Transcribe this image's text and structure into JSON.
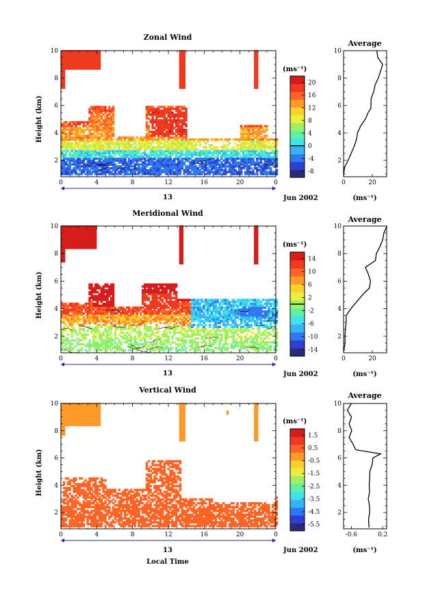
{
  "colors": {
    "colormap": [
      "#2a2a7a",
      "#2f3fd0",
      "#2f78f0",
      "#36b4f4",
      "#3fe3e8",
      "#5ff0a8",
      "#9ff060",
      "#e8ef3c",
      "#ffd02c",
      "#ff9a28",
      "#ff6424",
      "#f03a20",
      "#d81c1c"
    ],
    "contour": "#000000",
    "axis": "#000000",
    "timebar": "#1b2a9a"
  },
  "date_label": "Jun 2002",
  "day_label": "13",
  "x_axis_title": "Local Time",
  "y_axis_title": "Height (km)",
  "unit_label": "(ms⁻¹)",
  "avg_unit_label": "(ms⁻¹)",
  "chart_data": [
    {
      "type": "heatmap",
      "title": "Zonal Wind",
      "xlabel": "",
      "ylabel": "Height (km)",
      "x_ticks": [
        "0",
        "4",
        "8",
        "12",
        "16",
        "20",
        "0"
      ],
      "xlim": [
        0,
        24
      ],
      "y_ticks": [
        "2",
        "4",
        "6",
        "8",
        "10"
      ],
      "ylim": [
        0.8,
        10
      ],
      "colorbar": {
        "label": "(ms⁻¹)",
        "ticks": [
          "-8",
          "-4",
          "0",
          "4",
          "8",
          "12",
          "16",
          "20"
        ],
        "range": [
          -10,
          22
        ],
        "contour_at": 0
      },
      "average": {
        "title": "Average",
        "xlabel": "(ms⁻¹)",
        "x_ticks": [
          "0",
          "20"
        ],
        "xlim": [
          0,
          30
        ],
        "y_ticks": [
          "2",
          "4",
          "6",
          "8",
          "10"
        ],
        "height_km": [
          0.9,
          1.5,
          2.0,
          2.5,
          3.0,
          3.5,
          4.0,
          4.5,
          5.0,
          5.5,
          5.8,
          6.5,
          7.0,
          7.5,
          8.0,
          8.5,
          9.0,
          9.5,
          10.0
        ],
        "wind_ms": [
          0,
          1,
          3,
          5,
          7,
          9,
          10,
          12,
          15,
          17,
          19,
          19,
          21,
          22,
          24,
          26,
          27,
          24,
          23
        ]
      }
    },
    {
      "type": "heatmap",
      "title": "Meridional Wind",
      "xlabel": "",
      "ylabel": "Height (km)",
      "x_ticks": [
        "0",
        "4",
        "8",
        "12",
        "16",
        "20",
        "0"
      ],
      "xlim": [
        0,
        24
      ],
      "y_ticks": [
        "2",
        "4",
        "6",
        "8",
        "10"
      ],
      "ylim": [
        0.8,
        10
      ],
      "colorbar": {
        "label": "(ms⁻¹)",
        "ticks": [
          "-14",
          "-10",
          "-6",
          "-2",
          "2",
          "6",
          "10",
          "14"
        ],
        "range": [
          -16,
          16
        ],
        "contour_at": 0
      },
      "average": {
        "title": "Average",
        "xlabel": "(ms⁻¹)",
        "x_ticks": [
          "0",
          "20"
        ],
        "xlim": [
          0,
          30
        ],
        "y_ticks": [
          "2",
          "4",
          "6",
          "8",
          "10"
        ],
        "height_km": [
          0.9,
          1.5,
          2.0,
          2.5,
          3.0,
          3.5,
          4.0,
          4.5,
          5.0,
          5.5,
          6.0,
          6.5,
          7.0,
          7.5,
          8.0,
          8.5,
          9.0,
          9.5,
          10.0
        ],
        "wind_ms": [
          0,
          1,
          1,
          1,
          2,
          2,
          5,
          9,
          13,
          18,
          19,
          17,
          15,
          22,
          23,
          25,
          27,
          28,
          30
        ]
      }
    },
    {
      "type": "heatmap",
      "title": "Vertical Wind",
      "xlabel": "Local Time",
      "ylabel": "Height (km)",
      "x_ticks": [
        "0",
        "4",
        "8",
        "12",
        "16",
        "20",
        "0"
      ],
      "xlim": [
        0,
        24
      ],
      "y_ticks": [
        "2",
        "4",
        "6",
        "8",
        "10"
      ],
      "ylim": [
        0.8,
        10
      ],
      "colorbar": {
        "label": "(ms⁻¹)",
        "ticks": [
          "-5.5",
          "-4.5",
          "-3.5",
          "-2.5",
          "-1.5",
          "-0.5",
          "0.5",
          "1.5"
        ],
        "range": [
          -6,
          2
        ]
      },
      "average": {
        "title": "Average",
        "xlabel": "(ms⁻¹)",
        "x_ticks": [
          "-0.6",
          "0.2"
        ],
        "xlim": [
          -0.8,
          0.3
        ],
        "y_ticks": [
          "2",
          "4",
          "6",
          "8",
          "10"
        ],
        "height_km": [
          0.9,
          1.5,
          2.0,
          2.5,
          3.0,
          3.5,
          4.0,
          4.5,
          5.0,
          5.5,
          6.0,
          6.3,
          6.6,
          7.0,
          7.5,
          8.0,
          8.5,
          9.0,
          9.5,
          10.0
        ],
        "wind_ms": [
          -0.15,
          -0.16,
          -0.14,
          -0.15,
          -0.16,
          -0.14,
          -0.15,
          -0.14,
          -0.12,
          -0.08,
          -0.05,
          0.15,
          -0.5,
          -0.55,
          -0.65,
          -0.6,
          -0.65,
          -0.6,
          -0.7,
          -0.6
        ]
      }
    }
  ]
}
